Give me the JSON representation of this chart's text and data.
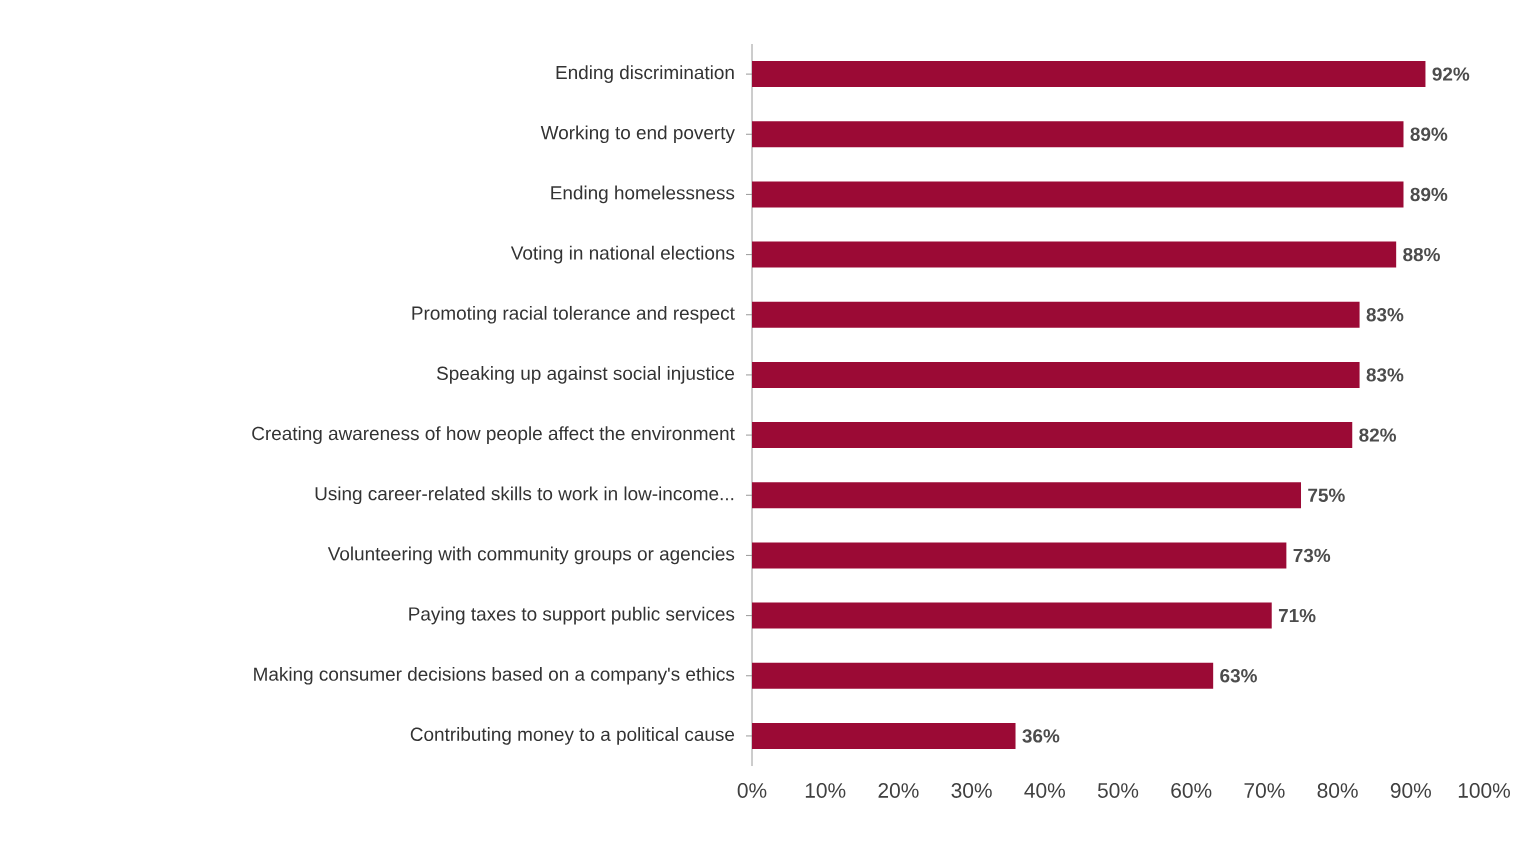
{
  "chart_data": {
    "type": "bar",
    "orientation": "horizontal",
    "categories": [
      "Ending discrimination",
      "Working to end poverty",
      "Ending homelessness",
      "Voting in national elections",
      "Promoting racial tolerance and respect",
      "Speaking up against social injustice",
      "Creating awareness of how people affect the environment",
      "Using career-related skills to work in low-income...",
      "Volunteering with community groups or agencies",
      "Paying taxes to support public services",
      "Making consumer decisions based on a company's ethics",
      "Contributing money to a political cause"
    ],
    "values": [
      92,
      89,
      89,
      88,
      83,
      83,
      82,
      75,
      73,
      71,
      63,
      36
    ],
    "value_labels": [
      "92%",
      "89%",
      "89%",
      "88%",
      "83%",
      "83%",
      "82%",
      "75%",
      "73%",
      "71%",
      "63%",
      "36%"
    ],
    "color": "#9b0a35",
    "xlim": [
      0,
      100
    ],
    "xticks": [
      {
        "value": 0,
        "label": "0%"
      },
      {
        "value": 10,
        "label": "10%"
      },
      {
        "value": 20,
        "label": "20%"
      },
      {
        "value": 30,
        "label": "30%"
      },
      {
        "value": 40,
        "label": "40%"
      },
      {
        "value": 50,
        "label": "50%"
      },
      {
        "value": 60,
        "label": "60%"
      },
      {
        "value": 70,
        "label": "70%"
      },
      {
        "value": 80,
        "label": "80%"
      },
      {
        "value": 90,
        "label": "90%"
      },
      {
        "value": 100,
        "label": "100%"
      }
    ]
  }
}
